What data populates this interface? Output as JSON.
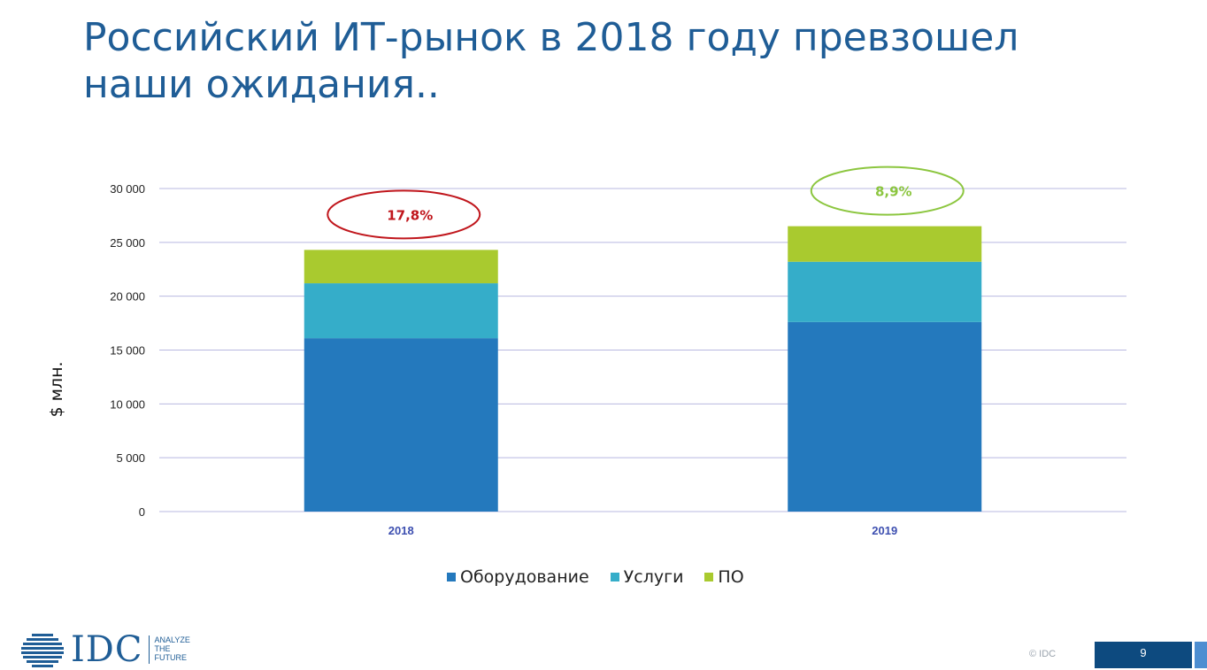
{
  "slide": {
    "title_line1": "Российский ИТ-рынок в 2018 году превзошел",
    "title_line2": "наши ожидания..",
    "copyright": "© IDC",
    "page_number": "9"
  },
  "logo": {
    "text": "IDC",
    "tagline_1": "ANALYZE",
    "tagline_2": "THE",
    "tagline_3": "FUTURE"
  },
  "chart_data": {
    "type": "bar",
    "stacked": true,
    "categories": [
      "2018",
      "2019"
    ],
    "series": [
      {
        "name": "Оборудование",
        "values": [
          16100,
          17600
        ],
        "color": "#2479bd"
      },
      {
        "name": "Услуги",
        "values": [
          5100,
          5600
        ],
        "color": "#35adc9"
      },
      {
        "name": "ПО",
        "values": [
          3100,
          3300
        ],
        "color": "#a9ca2f"
      }
    ],
    "ylabel": "$ млн.",
    "ylim": [
      0,
      30000
    ],
    "yticks": [
      "0",
      "5 000",
      "10 000",
      "15 000",
      "20 000",
      "25 000",
      "30 000"
    ],
    "ytick_values": [
      0,
      5000,
      10000,
      15000,
      20000,
      25000,
      30000
    ],
    "grid": true,
    "legend_position": "bottom",
    "annotations": [
      {
        "text": "17,8%",
        "category": "2018",
        "color": "#c0161c"
      },
      {
        "text": "8,9%",
        "category": "2019",
        "color": "#8cc63f"
      }
    ]
  }
}
